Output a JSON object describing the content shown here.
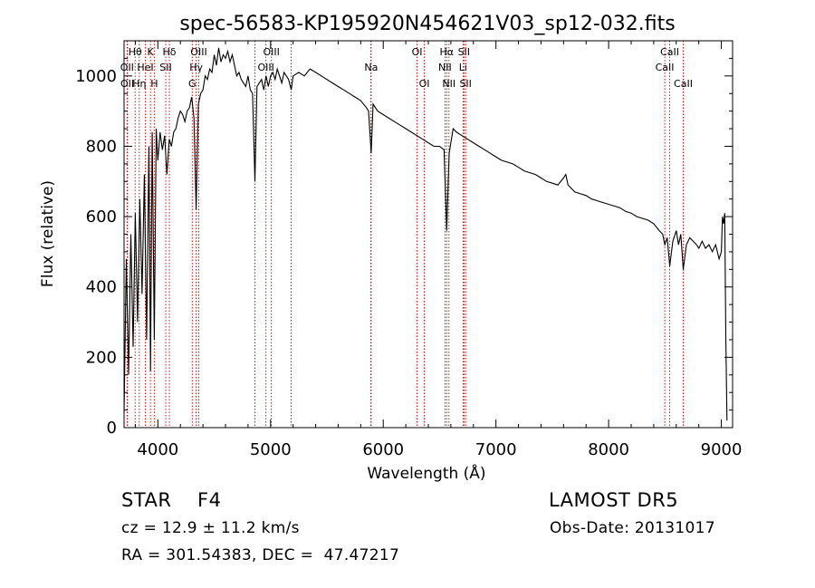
{
  "chart_data": {
    "type": "line",
    "title": "spec-56583-KP195920N454621V03_sp12-032.fits",
    "xlabel": "Wavelength (Å)",
    "ylabel": "Flux (relative)",
    "xlim": [
      3700,
      9100
    ],
    "ylim": [
      0,
      1100
    ],
    "x_ticks": [
      4000,
      5000,
      6000,
      7000,
      8000,
      9000
    ],
    "y_ticks": [
      0,
      200,
      400,
      600,
      800,
      1000
    ],
    "grid": false,
    "series": [
      {
        "x": [
          3700,
          3720,
          3740,
          3760,
          3780,
          3800,
          3820,
          3840,
          3860,
          3880,
          3900,
          3920,
          3935,
          3950,
          3968,
          3985,
          4000,
          4020,
          4040,
          4060,
          4080,
          4101,
          4120,
          4140,
          4160,
          4180,
          4200,
          4220,
          4240,
          4260,
          4280,
          4300,
          4320,
          4340,
          4360,
          4380,
          4400,
          4420,
          4440,
          4460,
          4480,
          4500,
          4520,
          4540,
          4560,
          4580,
          4600,
          4620,
          4640,
          4660,
          4680,
          4700,
          4720,
          4740,
          4760,
          4780,
          4800,
          4820,
          4840,
          4861,
          4880,
          4900,
          4920,
          4940,
          4960,
          4980,
          5000,
          5020,
          5040,
          5060,
          5080,
          5100,
          5120,
          5140,
          5160,
          5183,
          5200,
          5250,
          5300,
          5350,
          5400,
          5450,
          5500,
          5550,
          5600,
          5650,
          5700,
          5750,
          5800,
          5850,
          5870,
          5893,
          5910,
          5950,
          6000,
          6050,
          6100,
          6150,
          6200,
          6250,
          6300,
          6350,
          6400,
          6450,
          6500,
          6540,
          6563,
          6585,
          6620,
          6650,
          6700,
          6750,
          6800,
          6850,
          6900,
          6950,
          7000,
          7050,
          7100,
          7150,
          7200,
          7250,
          7300,
          7350,
          7400,
          7450,
          7500,
          7550,
          7600,
          7620,
          7640,
          7700,
          7750,
          7800,
          7850,
          7900,
          7950,
          8000,
          8050,
          8100,
          8150,
          8200,
          8250,
          8300,
          8350,
          8400,
          8450,
          8480,
          8498,
          8520,
          8542,
          8570,
          8600,
          8620,
          8640,
          8662,
          8690,
          8720,
          8750,
          8780,
          8800,
          8830,
          8860,
          8890,
          8920,
          8950,
          8980,
          9000,
          9010,
          9020,
          9030,
          9040,
          9050
        ],
        "y": [
          40,
          480,
          150,
          550,
          230,
          610,
          300,
          650,
          380,
          720,
          250,
          800,
          160,
          840,
          250,
          850,
          760,
          840,
          790,
          830,
          720,
          820,
          800,
          840,
          850,
          880,
          900,
          890,
          870,
          900,
          910,
          940,
          880,
          620,
          920,
          950,
          960,
          1000,
          990,
          1020,
          1010,
          1060,
          1030,
          1080,
          1040,
          1060,
          1050,
          1070,
          1040,
          1060,
          1030,
          1000,
          1010,
          990,
          980,
          970,
          1000,
          960,
          950,
          700,
          970,
          980,
          990,
          960,
          1000,
          970,
          1000,
          1010,
          990,
          1020,
          1000,
          980,
          1010,
          1000,
          990,
          960,
          1000,
          1010,
          1000,
          1020,
          1010,
          1000,
          990,
          980,
          970,
          960,
          950,
          940,
          930,
          910,
          900,
          780,
          920,
          900,
          890,
          880,
          870,
          860,
          850,
          840,
          830,
          820,
          810,
          800,
          800,
          790,
          560,
          780,
          850,
          840,
          830,
          820,
          810,
          800,
          790,
          780,
          770,
          760,
          755,
          750,
          740,
          730,
          725,
          720,
          710,
          700,
          695,
          690,
          710,
          720,
          690,
          670,
          665,
          660,
          650,
          645,
          640,
          635,
          630,
          625,
          615,
          610,
          600,
          595,
          590,
          580,
          560,
          550,
          520,
          540,
          460,
          530,
          560,
          520,
          550,
          450,
          520,
          540,
          530,
          520,
          510,
          530,
          510,
          520,
          500,
          520,
          480,
          500,
          600,
          580,
          610,
          260,
          20
        ]
      }
    ],
    "lines": [
      {
        "label": "Hθ",
        "wavelength": 3798,
        "label_row": 0
      },
      {
        "label": "OII",
        "wavelength": 3727,
        "label_row": 1
      },
      {
        "label": "OII",
        "wavelength": 3729,
        "label_row": 2
      },
      {
        "label": "Hη",
        "wavelength": 3835,
        "label_row": 2
      },
      {
        "label": "K",
        "wavelength": 3934,
        "label_row": 0
      },
      {
        "label": "HeI",
        "wavelength": 3889,
        "label_row": 1
      },
      {
        "label": "H",
        "wavelength": 3968,
        "label_row": 2
      },
      {
        "label": "Hδ",
        "wavelength": 4102,
        "label_row": 0
      },
      {
        "label": "SII",
        "wavelength": 4070,
        "label_row": 1
      },
      {
        "label": "OIII",
        "wavelength": 4363,
        "label_row": 0
      },
      {
        "label": "Hγ",
        "wavelength": 4340,
        "label_row": 1
      },
      {
        "label": "G",
        "wavelength": 4305,
        "label_row": 2
      },
      {
        "label": "OIII",
        "wavelength": 5007,
        "label_row": 0
      },
      {
        "label": "OIII",
        "wavelength": 4959,
        "label_row": 1
      },
      {
        "label": "Na",
        "wavelength": 5893,
        "label_row": 1
      },
      {
        "label": "OI",
        "wavelength": 6300,
        "label_row": 0
      },
      {
        "label": "OI",
        "wavelength": 6364,
        "label_row": 2
      },
      {
        "label": "Hα",
        "wavelength": 6563,
        "label_row": 0
      },
      {
        "label": "SII",
        "wavelength": 6716,
        "label_row": 0
      },
      {
        "label": "NII",
        "wavelength": 6548,
        "label_row": 1
      },
      {
        "label": "Li",
        "wavelength": 6708,
        "label_row": 1
      },
      {
        "label": "NII",
        "wavelength": 6583,
        "label_row": 2
      },
      {
        "label": "SII",
        "wavelength": 6731,
        "label_row": 2
      },
      {
        "label": "CaII",
        "wavelength": 8542,
        "label_row": 0
      },
      {
        "label": "CaII",
        "wavelength": 8498,
        "label_row": 1
      },
      {
        "label": "CaII",
        "wavelength": 8662,
        "label_row": 2
      }
    ],
    "extra_marker_lines": [
      4861,
      5183,
      5890
    ],
    "line_color": "#c00000"
  },
  "info": {
    "class_label": "STAR",
    "subclass": "F4",
    "survey": "LAMOST DR5",
    "cz": "cz = 12.9 ± 11.2 km/s",
    "obs_date": "Obs-Date: 20131017",
    "coords": "RA = 301.54383, DEC =  47.47217"
  }
}
